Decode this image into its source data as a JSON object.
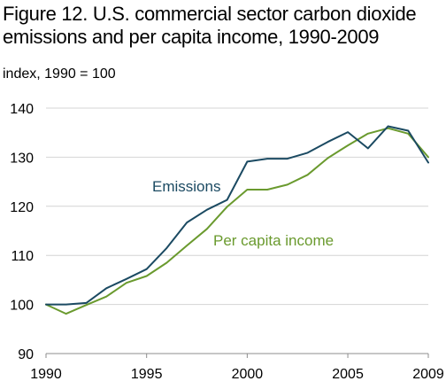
{
  "chart_data": {
    "type": "line",
    "title": "Figure 12. U.S. commercial sector carbon dioxide emissions and per capita income, 1990-2009",
    "ylabel": "index, 1990 = 100",
    "xlabel": "",
    "ylim": [
      90,
      140
    ],
    "xlim": [
      1990,
      2009
    ],
    "yticks": [
      90,
      100,
      110,
      120,
      130,
      140
    ],
    "xticks": [
      1990,
      1995,
      2000,
      2005,
      2009
    ],
    "grid": "horizontal",
    "x": [
      1990,
      1991,
      1992,
      1993,
      1994,
      1995,
      1996,
      1997,
      1998,
      1999,
      2000,
      2001,
      2002,
      2003,
      2004,
      2005,
      2006,
      2007,
      2008,
      2009
    ],
    "series": [
      {
        "name": "Emissions",
        "color": "#1b4a62",
        "values": [
          100,
          100,
          100.3,
          103.3,
          105.2,
          107.2,
          111.5,
          116.7,
          119.3,
          121.3,
          129.1,
          129.7,
          129.7,
          130.9,
          133.1,
          135.1,
          131.8,
          136.3,
          135.4,
          128.9
        ]
      },
      {
        "name": "Per capita income",
        "color": "#6a9a2e",
        "values": [
          100,
          98.1,
          99.9,
          101.6,
          104.4,
          105.8,
          108.5,
          112,
          115.4,
          119.9,
          123.4,
          123.4,
          124.4,
          126.4,
          129.8,
          132.4,
          134.8,
          135.9,
          134.8,
          130
        ]
      }
    ]
  }
}
